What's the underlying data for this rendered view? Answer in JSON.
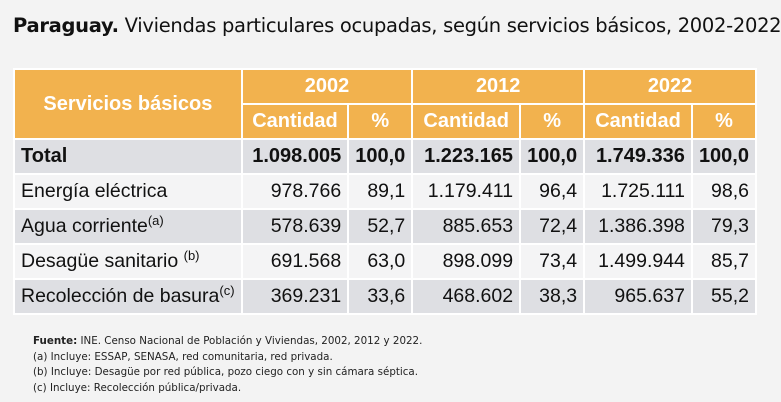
{
  "title": {
    "bold": "Paraguay.",
    "text": " Viviendas particulares ocupadas, según servicios básicos, 2002-2022"
  },
  "colors": {
    "header": "#f2b24e",
    "row_dark": "#dedfe3",
    "row_light": "#f4f4f5"
  },
  "chart_data": {
    "type": "table",
    "row_header": "Servicios básicos",
    "years": [
      "2002",
      "2012",
      "2022"
    ],
    "subcolumns": [
      "Cantidad",
      "%"
    ],
    "rows": [
      {
        "label": "Total",
        "sup": "",
        "values": [
          "1.098.005",
          "100,0",
          "1.223.165",
          "100,0",
          "1.749.336",
          "100,0"
        ]
      },
      {
        "label": "Energía eléctrica",
        "sup": "",
        "values": [
          "978.766",
          "89,1",
          "1.179.411",
          "96,4",
          "1.725.111",
          "98,6"
        ]
      },
      {
        "label": "Agua corriente",
        "sup": "(a)",
        "values": [
          "578.639",
          "52,7",
          "885.653",
          "72,4",
          "1.386.398",
          "79,3"
        ]
      },
      {
        "label": "Desagüe sanitario ",
        "sup": "(b)",
        "values": [
          "691.568",
          "63,0",
          "898.099",
          "73,4",
          "1.499.944",
          "85,7"
        ]
      },
      {
        "label": "Recolección de basura",
        "sup": "(c)",
        "values": [
          "369.231",
          "33,6",
          "468.602",
          "38,3",
          "965.637",
          "55,2"
        ]
      }
    ]
  },
  "notes": {
    "source_label": "Fuente:",
    "source_text": " INE. Censo Nacional de Población y Viviendas, 2002, 2012 y 2022.",
    "a": "(a) Incluye: ESSAP, SENASA, red comunitaria, red privada.",
    "b": "(b) Incluye: Desagüe por red pública, pozo ciego con y sin cámara séptica.",
    "c": "(c) Incluye: Recolección pública/privada."
  }
}
